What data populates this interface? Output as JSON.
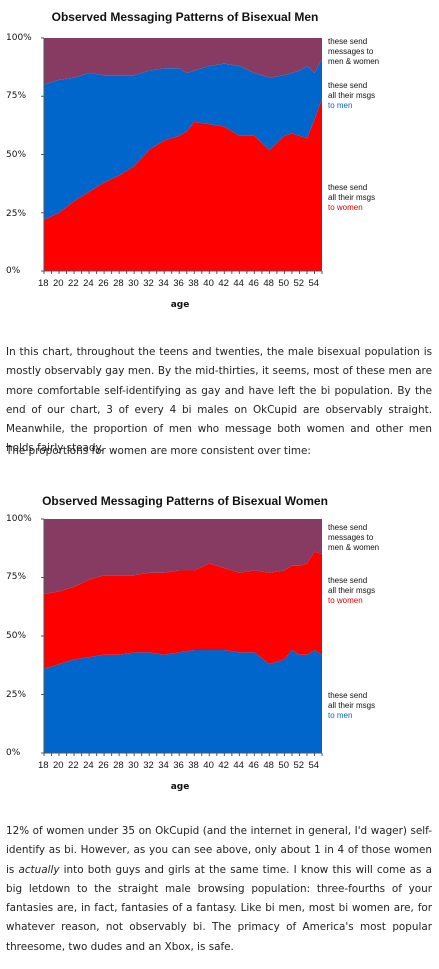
{
  "chart_data": [
    {
      "type": "area",
      "title": "Observed Messaging Patterns of Bisexual Men",
      "xlabel": "age",
      "ylabel": "",
      "ylim": [
        0,
        100
      ],
      "x_ticks": [
        "18",
        "20",
        "22",
        "24",
        "26",
        "28",
        "30",
        "32",
        "34",
        "36",
        "38",
        "40",
        "42",
        "44",
        "46",
        "48",
        "50",
        "52",
        "54"
      ],
      "y_ticks": [
        "0%",
        "25%",
        "50%",
        "75%",
        "100%"
      ],
      "x": [
        18,
        20,
        22,
        24,
        26,
        28,
        30,
        32,
        34,
        36,
        37,
        38,
        40,
        42,
        44,
        46,
        48,
        50,
        51,
        52,
        53,
        54,
        55
      ],
      "series": [
        {
          "name": "these send all their msgs to women",
          "color": "#ff0000",
          "values": [
            22,
            25,
            30,
            34,
            38,
            41,
            45,
            52,
            56,
            58,
            60,
            64,
            63,
            62,
            58,
            58,
            52,
            58,
            59,
            58,
            57,
            65,
            74
          ]
        },
        {
          "name": "these send all their msgs to men",
          "color": "#0066cc",
          "values": [
            58,
            57,
            53,
            51,
            46,
            43,
            39,
            34,
            31,
            29,
            25,
            22,
            25,
            27,
            30,
            27,
            31,
            26,
            26,
            28,
            31,
            20,
            17
          ]
        },
        {
          "name": "these send messages to men & women",
          "color": "#873b62",
          "values": [
            20,
            18,
            17,
            15,
            16,
            16,
            16,
            14,
            13,
            13,
            15,
            14,
            12,
            11,
            12,
            15,
            17,
            16,
            15,
            14,
            12,
            15,
            9
          ]
        }
      ],
      "legend": [
        {
          "lines": [
            "these send",
            "messages to",
            "men & women"
          ],
          "color_tail": ""
        },
        {
          "lines": [
            "these send",
            "all their msgs"
          ],
          "tail": "to men",
          "tail_color": "#0066cc"
        },
        {
          "lines": [
            "these send",
            "all their msgs"
          ],
          "tail": "to women",
          "tail_color": "#e00000"
        }
      ]
    },
    {
      "type": "area",
      "title": "Observed Messaging Patterns of Bisexual Women",
      "xlabel": "age",
      "ylabel": "",
      "ylim": [
        0,
        100
      ],
      "x_ticks": [
        "18",
        "20",
        "22",
        "24",
        "26",
        "28",
        "30",
        "32",
        "34",
        "36",
        "38",
        "40",
        "42",
        "44",
        "46",
        "48",
        "50",
        "52",
        "54"
      ],
      "y_ticks": [
        "0%",
        "25%",
        "50%",
        "75%",
        "100%"
      ],
      "x": [
        18,
        20,
        22,
        24,
        26,
        28,
        30,
        32,
        34,
        36,
        38,
        40,
        42,
        44,
        46,
        48,
        50,
        51,
        52,
        53,
        54,
        55
      ],
      "series": [
        {
          "name": "these send all their msgs to men",
          "color": "#0066cc",
          "values": [
            36,
            38,
            40,
            41,
            42,
            42,
            43,
            43,
            42,
            43,
            44,
            44,
            44,
            43,
            43,
            38,
            40,
            44,
            42,
            42,
            44,
            42
          ]
        },
        {
          "name": "these send all their msgs to women",
          "color": "#ff0000",
          "values": [
            32,
            31,
            31,
            33,
            34,
            34,
            33,
            34,
            35,
            35,
            34,
            37,
            35,
            34,
            35,
            39,
            38,
            36,
            38,
            39,
            42,
            43
          ]
        },
        {
          "name": "these send messages to men & women",
          "color": "#873b62",
          "values": [
            32,
            31,
            29,
            26,
            24,
            24,
            24,
            23,
            23,
            22,
            22,
            19,
            21,
            23,
            22,
            23,
            22,
            20,
            20,
            19,
            14,
            15
          ]
        }
      ],
      "legend": [
        {
          "lines": [
            "these send",
            "messages to",
            "men & women"
          ],
          "color_tail": ""
        },
        {
          "lines": [
            "these send",
            "all their msgs"
          ],
          "tail": "to women",
          "tail_color": "#e00000"
        },
        {
          "lines": [
            "these send",
            "all their msgs"
          ],
          "tail": "to men",
          "tail_color": "#0066cc"
        }
      ]
    }
  ],
  "text": {
    "p1": "In this chart, throughout the teens and twenties, the male bisexual population is mostly observably gay men. By the mid-thirties, it seems, most of these men are more comfortable self-identifying as gay and have left the bi population. By the end of our chart, 3 of every 4 bi males on OkCupid are observably straight. Meanwhile, the proportion of men who message both women and other men holds fairly steady.",
    "p2": "The proportions for women are more consistent over time:",
    "p3_a": "12% of women under 35 on OkCupid (and the internet in general, I'd wager) self-identify as bi. However, as you can see above, only about 1 in 4 of those women is ",
    "p3_em": "actually",
    "p3_b": " into both guys and girls at the same time. I know this will come as a big letdown to the straight male browsing population: three-fourths of your fantasies are, in fact, fantasies of a fantasy. Like bi men, most bi women are, for whatever reason, not observably bi. The primacy of America's most popular threesome, two dudes and an Xbox, is safe."
  }
}
